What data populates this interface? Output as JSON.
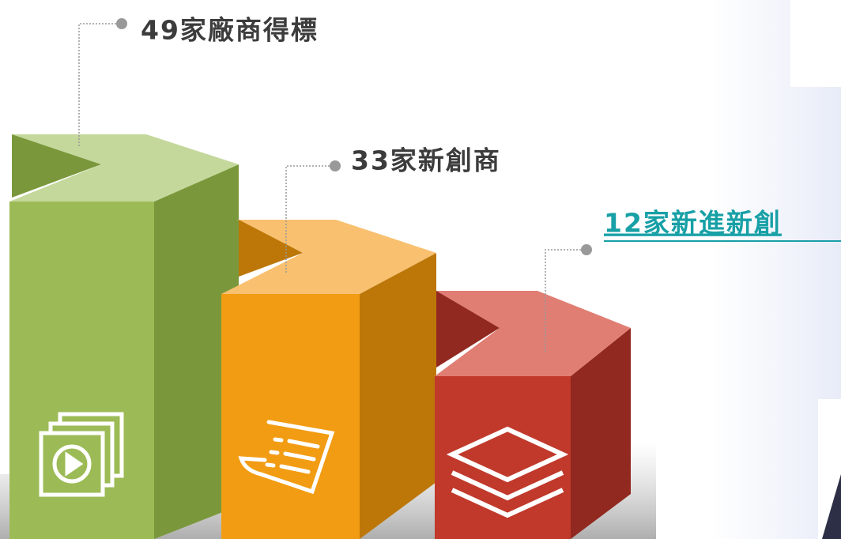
{
  "items": [
    {
      "label": "49家廠商得標"
    },
    {
      "label": "33家新創商"
    },
    {
      "label": "12家新進新創"
    }
  ]
}
